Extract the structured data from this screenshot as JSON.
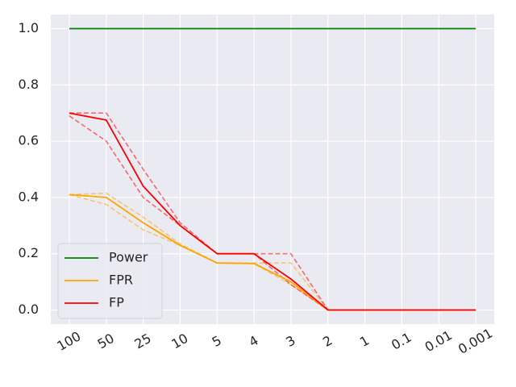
{
  "chart_data": {
    "type": "line",
    "categories": [
      "100",
      "50",
      "25",
      "10",
      "5",
      "4",
      "3",
      "2",
      "1",
      "0.1",
      "0.01",
      "0.001"
    ],
    "ylim": [
      -0.05,
      1.05
    ],
    "yticks": [
      "0.0",
      "0.2",
      "0.4",
      "0.6",
      "0.8",
      "1.0"
    ],
    "grid": true,
    "legend_position": "lower-left",
    "series": [
      {
        "name": "Power",
        "color": "#008000",
        "style": "solid",
        "values": [
          1,
          1,
          1,
          1,
          1,
          1,
          1,
          1,
          1,
          1,
          1,
          1
        ]
      },
      {
        "name": "FPR",
        "color": "#ffa500",
        "style": "solid",
        "values": [
          0.41,
          0.4,
          0.31,
          0.23,
          0.167,
          0.165,
          0.1,
          0,
          0,
          0,
          0,
          0
        ]
      },
      {
        "name": "FP",
        "color": "#ff0000",
        "style": "solid",
        "values": [
          0.7,
          0.675,
          0.44,
          0.3,
          0.2,
          0.2,
          0.11,
          0,
          0,
          0,
          0,
          0
        ]
      }
    ],
    "bands": [
      {
        "of": "FPR",
        "color": "#ffa500",
        "style": "dashed",
        "upper": [
          0.41,
          0.415,
          0.33,
          0.235,
          0.167,
          0.167,
          0.167,
          0,
          0,
          0,
          0,
          0
        ],
        "lower": [
          0.41,
          0.375,
          0.285,
          0.23,
          0.167,
          0.165,
          0.09,
          0,
          0,
          0,
          0,
          0
        ]
      },
      {
        "of": "FP",
        "color": "#ff0000",
        "style": "dashed",
        "upper": [
          0.7,
          0.7,
          0.5,
          0.31,
          0.2,
          0.2,
          0.2,
          0,
          0,
          0,
          0,
          0
        ],
        "lower": [
          0.69,
          0.6,
          0.4,
          0.3,
          0.2,
          0.2,
          0.09,
          0,
          0,
          0,
          0,
          0
        ]
      }
    ]
  }
}
